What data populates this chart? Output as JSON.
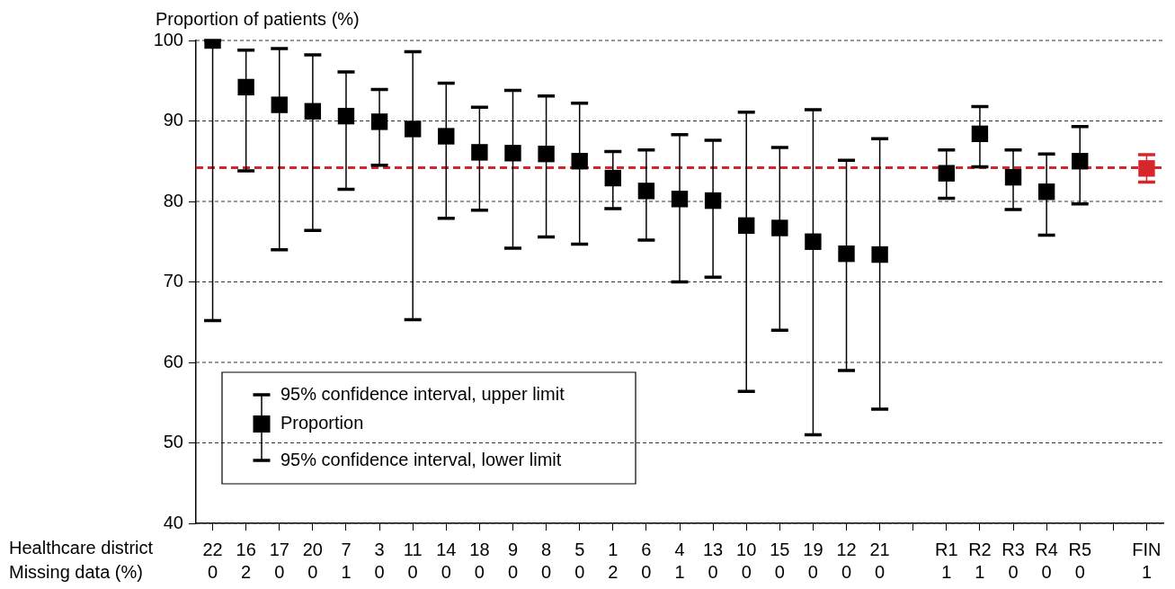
{
  "chart_data": {
    "type": "scatter",
    "ylabel": "Proportion of patients (%)",
    "xlabel": "Healthcare district",
    "categories": [
      "22",
      "16",
      "17",
      "20",
      "7",
      "3",
      "11",
      "14",
      "18",
      "9",
      "8",
      "5",
      "1",
      "6",
      "4",
      "13",
      "10",
      "15",
      "19",
      "12",
      "21",
      null,
      "R1",
      "R2",
      "R3",
      "R4",
      "R5",
      null,
      "FIN"
    ],
    "series": [
      {
        "name": "Proportion",
        "values": [
          100,
          94.2,
          92.0,
          91.2,
          90.6,
          89.9,
          89.0,
          88.1,
          86.1,
          86.0,
          85.9,
          85.0,
          82.9,
          81.3,
          80.3,
          80.1,
          77.0,
          76.7,
          75.0,
          73.5,
          73.4,
          null,
          83.5,
          88.4,
          83.0,
          81.2,
          85.0,
          null,
          84.1
        ],
        "colors": [
          "#000000",
          "#000000",
          "#000000",
          "#000000",
          "#000000",
          "#000000",
          "#000000",
          "#000000",
          "#000000",
          "#000000",
          "#000000",
          "#000000",
          "#000000",
          "#000000",
          "#000000",
          "#000000",
          "#000000",
          "#000000",
          "#000000",
          "#000000",
          "#000000",
          null,
          "#000000",
          "#000000",
          "#000000",
          "#000000",
          "#000000",
          null,
          "#d7262b"
        ],
        "errors": [
          [
            65.2,
            100
          ],
          [
            83.8,
            98.8
          ],
          [
            74.0,
            99.0
          ],
          [
            76.4,
            98.2
          ],
          [
            81.5,
            96.1
          ],
          [
            84.5,
            93.9
          ],
          [
            65.3,
            98.6
          ],
          [
            77.9,
            94.7
          ],
          [
            78.9,
            91.7
          ],
          [
            74.2,
            93.8
          ],
          [
            75.6,
            93.1
          ],
          [
            74.7,
            92.2
          ],
          [
            79.1,
            86.2
          ],
          [
            75.2,
            86.4
          ],
          [
            70.0,
            88.3
          ],
          [
            70.6,
            87.6
          ],
          [
            56.4,
            91.1
          ],
          [
            64.0,
            86.7
          ],
          [
            51.0,
            91.4
          ],
          [
            59.0,
            85.1
          ],
          [
            54.2,
            87.8
          ],
          null,
          [
            80.4,
            86.4
          ],
          [
            84.3,
            91.8
          ],
          [
            79.0,
            86.4
          ],
          [
            75.8,
            85.9
          ],
          [
            79.7,
            89.3
          ],
          null,
          [
            82.4,
            85.8
          ]
        ]
      }
    ],
    "marker": "square",
    "ylim": [
      40,
      100
    ],
    "yticks": [
      40,
      50,
      60,
      70,
      80,
      90,
      100
    ],
    "grid": "y",
    "legend": "bottom left",
    "ref_lines": [
      {
        "axis": "y",
        "value": 84.2,
        "color": "#d7262b",
        "line_style": "dashed"
      }
    ],
    "annotations": [
      "95% confidence interval, upper limit",
      "95% confidence interval, lower limit",
      "Missing data (%)",
      "0",
      "2",
      "0",
      "0",
      "1",
      "0",
      "0",
      "0",
      "0",
      "0",
      "0",
      "0",
      "2",
      "0",
      "1",
      "0",
      "0",
      "0",
      "0",
      "0",
      "0",
      "1",
      "1",
      "0",
      "0",
      "0",
      "1"
    ]
  }
}
